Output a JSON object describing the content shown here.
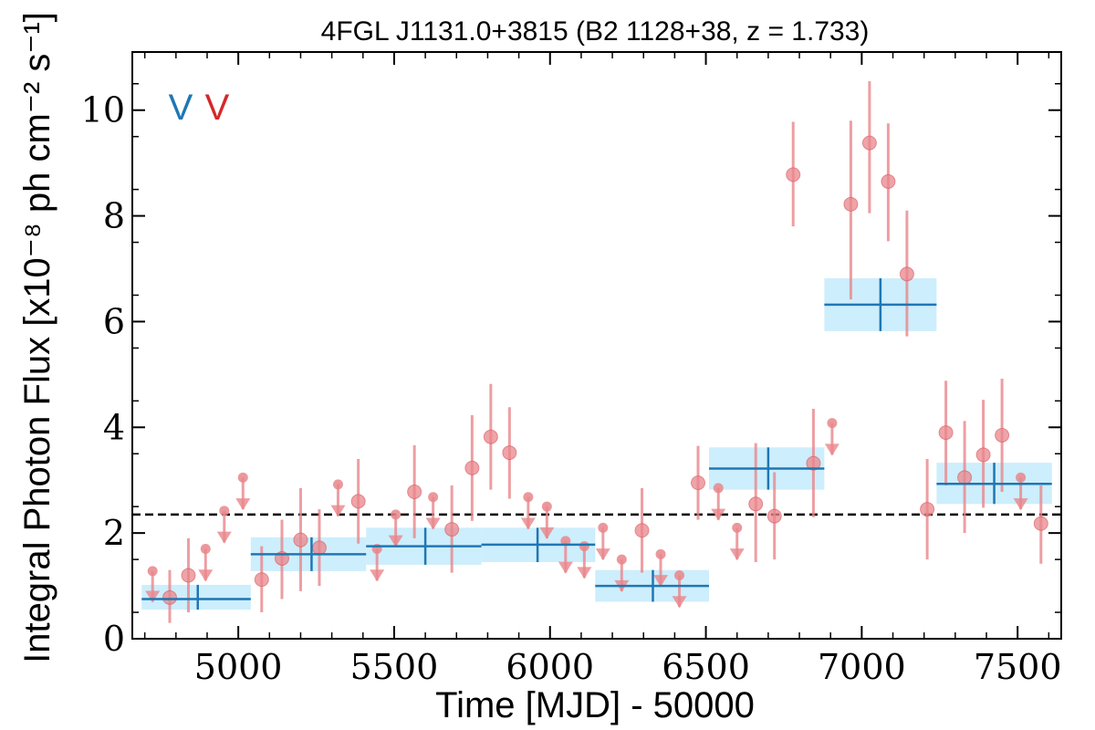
{
  "chart_data": {
    "type": "scatter",
    "title": "4FGL J1131.0+3815 (B2 1128+38, z = 1.733)",
    "xlabel": "Time [MJD] - 50000",
    "ylabel": "Integral Photon Flux [x10⁻⁸ ph cm⁻² s⁻¹]",
    "xlim": [
      4660,
      7640
    ],
    "ylim": [
      0,
      11.1
    ],
    "xticks": [
      5000,
      5500,
      6000,
      6500,
      7000,
      7500
    ],
    "yticks": [
      0,
      2,
      4,
      6,
      8,
      10
    ],
    "xtick_labels": [
      "5000",
      "5500",
      "6000",
      "6500",
      "7000",
      "7500"
    ],
    "ytick_labels": [
      "0",
      "2",
      "4",
      "6",
      "8",
      "10"
    ],
    "grid": false,
    "legend": {
      "placement": "top-left",
      "entries": [
        {
          "glyph": "V",
          "color": "#1f77b4"
        },
        {
          "glyph": "V",
          "color": "#d62728"
        }
      ]
    },
    "reference_level": 2.35,
    "colors": {
      "coarse_bins": "#1f77b4",
      "coarse_band": "#cdeefc",
      "fine_bins": "#e8868b",
      "reference_line": "#000000"
    },
    "series": [
      {
        "kind": "coarse",
        "bins": [
          {
            "x0": 4690,
            "x1": 5040,
            "xc": 4870,
            "y": 0.75,
            "lo": 0.55,
            "hi": 1.02
          },
          {
            "x0": 5040,
            "x1": 5410,
            "xc": 5235,
            "y": 1.6,
            "lo": 1.28,
            "hi": 1.92
          },
          {
            "x0": 5410,
            "x1": 5780,
            "xc": 5600,
            "y": 1.75,
            "lo": 1.4,
            "hi": 2.1
          },
          {
            "x0": 5780,
            "x1": 6145,
            "xc": 5960,
            "y": 1.78,
            "lo": 1.45,
            "hi": 2.1
          },
          {
            "x0": 6145,
            "x1": 6510,
            "xc": 6330,
            "y": 1.0,
            "lo": 0.7,
            "hi": 1.3
          },
          {
            "x0": 6510,
            "x1": 6880,
            "xc": 6700,
            "y": 3.22,
            "lo": 2.82,
            "hi": 3.62
          },
          {
            "x0": 6880,
            "x1": 7240,
            "xc": 7060,
            "y": 6.32,
            "lo": 5.82,
            "hi": 6.82
          },
          {
            "x0": 7240,
            "x1": 7610,
            "xc": 7425,
            "y": 2.93,
            "lo": 2.55,
            "hi": 3.33
          }
        ]
      },
      {
        "kind": "fine",
        "points": [
          {
            "x": 4725,
            "y": 1.28,
            "lo": 0.7,
            "hi": 1.28,
            "ul": true
          },
          {
            "x": 4780,
            "y": 0.78,
            "lo": 0.3,
            "hi": 1.3,
            "ul": false
          },
          {
            "x": 4840,
            "y": 1.2,
            "lo": 0.5,
            "hi": 1.9,
            "ul": false
          },
          {
            "x": 4895,
            "y": 1.7,
            "lo": 1.1,
            "hi": 1.7,
            "ul": true
          },
          {
            "x": 4955,
            "y": 2.42,
            "lo": 1.82,
            "hi": 2.42,
            "ul": true
          },
          {
            "x": 5015,
            "y": 3.05,
            "lo": 2.45,
            "hi": 3.05,
            "ul": true
          },
          {
            "x": 5075,
            "y": 1.12,
            "lo": 0.5,
            "hi": 1.75,
            "ul": false
          },
          {
            "x": 5140,
            "y": 1.52,
            "lo": 0.75,
            "hi": 2.25,
            "ul": false
          },
          {
            "x": 5200,
            "y": 1.87,
            "lo": 0.9,
            "hi": 2.85,
            "ul": false
          },
          {
            "x": 5260,
            "y": 1.72,
            "lo": 1.0,
            "hi": 2.45,
            "ul": false
          },
          {
            "x": 5320,
            "y": 2.92,
            "lo": 2.32,
            "hi": 2.92,
            "ul": true
          },
          {
            "x": 5385,
            "y": 2.6,
            "lo": 1.8,
            "hi": 3.4,
            "ul": false
          },
          {
            "x": 5445,
            "y": 1.7,
            "lo": 1.1,
            "hi": 1.7,
            "ul": true
          },
          {
            "x": 5505,
            "y": 2.35,
            "lo": 1.75,
            "hi": 2.35,
            "ul": true
          },
          {
            "x": 5565,
            "y": 2.78,
            "lo": 1.9,
            "hi": 3.66,
            "ul": false
          },
          {
            "x": 5625,
            "y": 2.68,
            "lo": 2.08,
            "hi": 2.68,
            "ul": true
          },
          {
            "x": 5685,
            "y": 2.07,
            "lo": 1.25,
            "hi": 2.9,
            "ul": false
          },
          {
            "x": 5750,
            "y": 3.23,
            "lo": 2.23,
            "hi": 4.23,
            "ul": false
          },
          {
            "x": 5810,
            "y": 3.82,
            "lo": 2.82,
            "hi": 4.82,
            "ul": false
          },
          {
            "x": 5870,
            "y": 3.52,
            "lo": 2.65,
            "hi": 4.38,
            "ul": false
          },
          {
            "x": 5930,
            "y": 2.68,
            "lo": 2.08,
            "hi": 2.68,
            "ul": true
          },
          {
            "x": 5990,
            "y": 2.5,
            "lo": 1.9,
            "hi": 2.5,
            "ul": true
          },
          {
            "x": 6050,
            "y": 1.85,
            "lo": 1.25,
            "hi": 1.85,
            "ul": true
          },
          {
            "x": 6110,
            "y": 1.75,
            "lo": 1.15,
            "hi": 1.75,
            "ul": true
          },
          {
            "x": 6170,
            "y": 2.1,
            "lo": 1.5,
            "hi": 2.1,
            "ul": true
          },
          {
            "x": 6230,
            "y": 1.5,
            "lo": 0.9,
            "hi": 1.5,
            "ul": true
          },
          {
            "x": 6295,
            "y": 2.05,
            "lo": 1.25,
            "hi": 2.85,
            "ul": false
          },
          {
            "x": 6355,
            "y": 1.6,
            "lo": 1.0,
            "hi": 1.6,
            "ul": true
          },
          {
            "x": 6415,
            "y": 1.2,
            "lo": 0.6,
            "hi": 1.2,
            "ul": true
          },
          {
            "x": 6475,
            "y": 2.95,
            "lo": 2.25,
            "hi": 3.65,
            "ul": false
          },
          {
            "x": 6540,
            "y": 2.85,
            "lo": 2.25,
            "hi": 2.85,
            "ul": true
          },
          {
            "x": 6600,
            "y": 2.1,
            "lo": 1.5,
            "hi": 2.1,
            "ul": true
          },
          {
            "x": 6660,
            "y": 2.55,
            "lo": 1.45,
            "hi": 3.7,
            "ul": false
          },
          {
            "x": 6720,
            "y": 2.32,
            "lo": 1.5,
            "hi": 3.15,
            "ul": false
          },
          {
            "x": 6780,
            "y": 8.78,
            "lo": 7.8,
            "hi": 9.78,
            "ul": false
          },
          {
            "x": 6845,
            "y": 3.32,
            "lo": 2.3,
            "hi": 4.35,
            "ul": false
          },
          {
            "x": 6905,
            "y": 4.08,
            "lo": 3.48,
            "hi": 4.08,
            "ul": true
          },
          {
            "x": 6965,
            "y": 8.22,
            "lo": 6.42,
            "hi": 9.8,
            "ul": false
          },
          {
            "x": 7025,
            "y": 9.38,
            "lo": 8.05,
            "hi": 10.55,
            "ul": false
          },
          {
            "x": 7085,
            "y": 8.65,
            "lo": 7.52,
            "hi": 9.75,
            "ul": false
          },
          {
            "x": 7145,
            "y": 6.9,
            "lo": 5.72,
            "hi": 8.1,
            "ul": false
          },
          {
            "x": 7210,
            "y": 2.45,
            "lo": 1.5,
            "hi": 3.4,
            "ul": false
          },
          {
            "x": 7270,
            "y": 3.9,
            "lo": 2.9,
            "hi": 4.88,
            "ul": false
          },
          {
            "x": 7330,
            "y": 3.05,
            "lo": 2.0,
            "hi": 4.12,
            "ul": false
          },
          {
            "x": 7390,
            "y": 3.48,
            "lo": 2.48,
            "hi": 4.52,
            "ul": false
          },
          {
            "x": 7450,
            "y": 3.85,
            "lo": 2.78,
            "hi": 4.92,
            "ul": false
          },
          {
            "x": 7510,
            "y": 3.05,
            "lo": 2.45,
            "hi": 3.05,
            "ul": true
          },
          {
            "x": 7575,
            "y": 2.18,
            "lo": 1.42,
            "hi": 2.9,
            "ul": false
          }
        ]
      }
    ]
  }
}
